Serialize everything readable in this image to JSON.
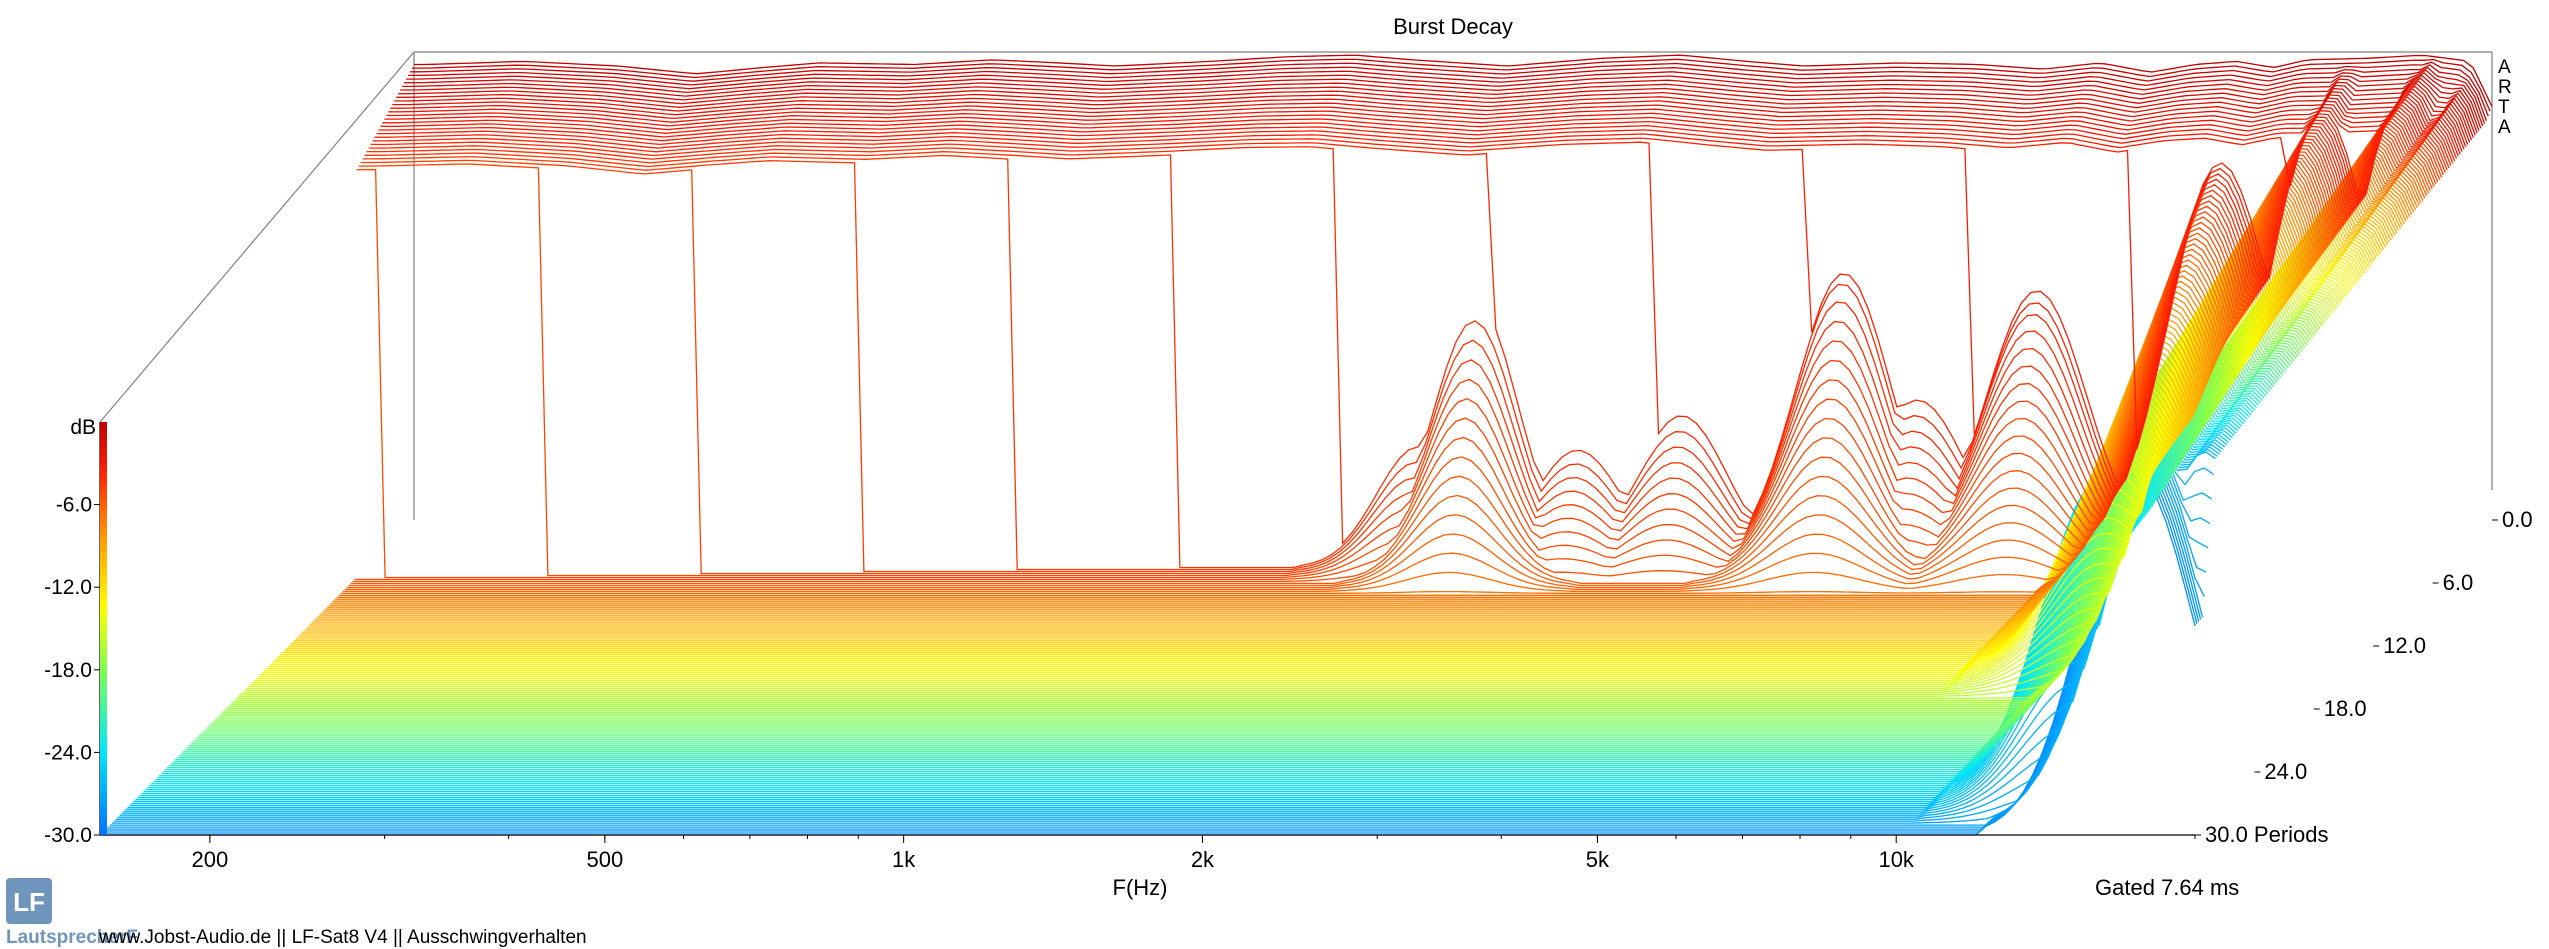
{
  "chart_data": {
    "type": "waterfall",
    "title": "Burst Decay",
    "brand_vertical": [
      "A",
      "R",
      "T",
      "A"
    ],
    "xlabel": "F(Hz)",
    "x_scale": "log",
    "x_ticks": [
      "200",
      "500",
      "1k",
      "2k",
      "5k",
      "10k"
    ],
    "x_tick_values": [
      200,
      500,
      1000,
      2000,
      5000,
      10000
    ],
    "xlim": [
      155,
      20000
    ],
    "z_axis": {
      "unit": "dB",
      "ticks": [
        "-6.0",
        "-12.0",
        "-18.0",
        "-24.0",
        "-30.0"
      ],
      "range": [
        -30,
        0
      ]
    },
    "y_axis": {
      "ticks": [
        "0.0",
        "6.0",
        "12.0",
        "18.0",
        "24.0",
        "30.0 Periods"
      ],
      "range": [
        0,
        30
      ],
      "unit": "Periods"
    },
    "gating": "Gated 7.64 ms",
    "colormap": [
      "#c00000",
      "#ff2000",
      "#ff9a00",
      "#ffff00",
      "#7fff50",
      "#00e6ff",
      "#0070ff"
    ],
    "front_response_db": [
      {
        "f": 160,
        "db": -0.8
      },
      {
        "f": 200,
        "db": -0.6
      },
      {
        "f": 250,
        "db": -0.9
      },
      {
        "f": 300,
        "db": -1.4
      },
      {
        "f": 350,
        "db": -1.0
      },
      {
        "f": 400,
        "db": -0.7
      },
      {
        "f": 500,
        "db": -0.8
      },
      {
        "f": 600,
        "db": -0.5
      },
      {
        "f": 700,
        "db": -0.7
      },
      {
        "f": 800,
        "db": -0.9
      },
      {
        "f": 1000,
        "db": -0.6
      },
      {
        "f": 1200,
        "db": -0.3
      },
      {
        "f": 1400,
        "db": -0.2
      },
      {
        "f": 1600,
        "db": -0.5
      },
      {
        "f": 2000,
        "db": -0.9
      },
      {
        "f": 2500,
        "db": -0.4
      },
      {
        "f": 3000,
        "db": -0.2
      },
      {
        "f": 3500,
        "db": -0.6
      },
      {
        "f": 4000,
        "db": -0.9
      },
      {
        "f": 5000,
        "db": -0.7
      },
      {
        "f": 6000,
        "db": -0.8
      },
      {
        "f": 7000,
        "db": -1.1
      },
      {
        "f": 8000,
        "db": -0.7
      },
      {
        "f": 9000,
        "db": -1.3
      },
      {
        "f": 10000,
        "db": -0.8
      },
      {
        "f": 11000,
        "db": -0.6
      },
      {
        "f": 12000,
        "db": -1.0
      },
      {
        "f": 13000,
        "db": -0.5
      },
      {
        "f": 15000,
        "db": -0.4
      },
      {
        "f": 17000,
        "db": -0.2
      },
      {
        "f": 19000,
        "db": -0.6
      },
      {
        "f": 20000,
        "db": -3.5
      }
    ],
    "decay": {
      "bulk_cutoff_periods_low": 5.5,
      "bulk_cutoff_periods_high": 3.0,
      "ridges": [
        {
          "f": 1800,
          "persist_db": -16,
          "periods": 3
        },
        {
          "f": 2050,
          "persist_db": -12,
          "periods": 4
        },
        {
          "f": 2600,
          "persist_db": -18,
          "periods": 3
        },
        {
          "f": 3300,
          "persist_db": -16,
          "periods": 3
        },
        {
          "f": 4800,
          "persist_db": -12,
          "periods": 4
        },
        {
          "f": 5700,
          "persist_db": -16,
          "periods": 3
        },
        {
          "f": 7500,
          "persist_db": -14,
          "periods": 4
        },
        {
          "f": 11500,
          "persist_db": -16,
          "periods": 14
        },
        {
          "f": 14500,
          "persist_db": -8,
          "periods": 26
        },
        {
          "f": 17500,
          "persist_db": -4,
          "periods": 30
        },
        {
          "f": 19500,
          "persist_db": -4,
          "periods": 28
        }
      ]
    }
  },
  "footer": {
    "text": "www.Jobst-Audio.de  ||  LF-Sat8 V4  ||  Ausschwingverhalten",
    "logo_text": "LautsprecherF",
    "logo_letters": "LF"
  }
}
